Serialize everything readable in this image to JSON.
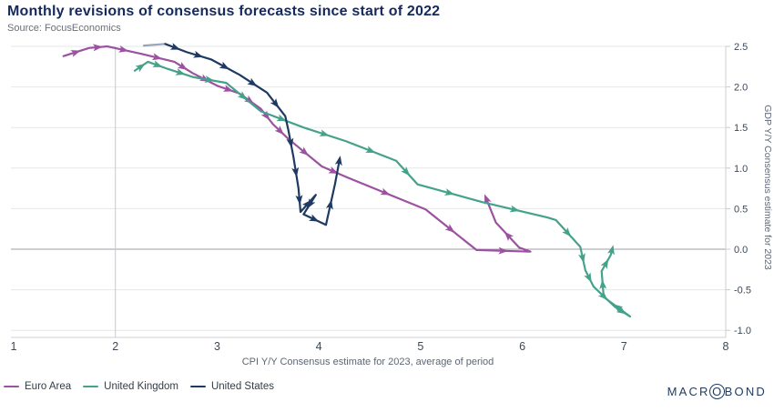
{
  "logo": {
    "part1": "MACR",
    "o": "O",
    "part2": "BOND"
  },
  "chart_data": {
    "type": "line",
    "title": "Monthly revisions of consensus forecasts since start of 2022",
    "source": "Source: FocusEconomics",
    "xlabel": "CPI Y/Y Consensus estimate for 2023, average of period",
    "ylabel": "GDP Y/Y Consensus estimate for 2023",
    "xlim": [
      1,
      8
    ],
    "ylim": [
      -1.0,
      2.5
    ],
    "xticks": [
      1,
      2,
      3,
      4,
      5,
      6,
      7,
      8
    ],
    "yticks": [
      2.5,
      2.0,
      1.5,
      1.0,
      0.5,
      0.0,
      -0.5,
      -1.0
    ],
    "grid": "horizontal light gridlines, darker zero line, vertical reference line at x=2",
    "reference_vline_x": 2,
    "zero_line": 0.0,
    "legend_position": "bottom-left",
    "marker_style": "directional arrows along each trail",
    "series": [
      {
        "name": "Euro Area",
        "color": "#9c51a1",
        "points": [
          [
            1.49,
            2.38
          ],
          [
            1.74,
            2.48
          ],
          [
            1.92,
            2.5
          ],
          [
            2.25,
            2.41
          ],
          [
            2.58,
            2.31
          ],
          [
            2.76,
            2.17
          ],
          [
            3.01,
            2.01
          ],
          [
            3.22,
            1.92
          ],
          [
            3.43,
            1.73
          ],
          [
            3.55,
            1.54
          ],
          [
            3.7,
            1.36
          ],
          [
            4.03,
            1.02
          ],
          [
            4.27,
            0.89
          ],
          [
            5.05,
            0.49
          ],
          [
            5.55,
            -0.01
          ],
          [
            6.08,
            -0.03
          ],
          [
            5.97,
            0.02
          ],
          [
            5.74,
            0.33
          ],
          [
            5.65,
            0.61
          ]
        ]
      },
      {
        "name": "United Kingdom",
        "color": "#44a28b",
        "points": [
          [
            2.19,
            2.2
          ],
          [
            2.32,
            2.31
          ],
          [
            2.52,
            2.22
          ],
          [
            2.77,
            2.12
          ],
          [
            3.09,
            2.05
          ],
          [
            3.43,
            1.7
          ],
          [
            3.85,
            1.5
          ],
          [
            4.27,
            1.33
          ],
          [
            4.76,
            1.09
          ],
          [
            4.97,
            0.8
          ],
          [
            5.61,
            0.58
          ],
          [
            6.25,
            0.39
          ],
          [
            6.33,
            0.36
          ],
          [
            6.57,
            0.03
          ],
          [
            6.62,
            -0.26
          ],
          [
            6.7,
            -0.46
          ],
          [
            6.91,
            -0.71
          ],
          [
            7.06,
            -0.83
          ],
          [
            6.8,
            -0.59
          ],
          [
            6.78,
            -0.27
          ],
          [
            6.87,
            -0.07
          ],
          [
            6.88,
            -0.02
          ]
        ]
      },
      {
        "name": "United States",
        "color": "#1e3a63",
        "start_fade": true,
        "points": [
          [
            2.28,
            2.51
          ],
          [
            2.49,
            2.53
          ],
          [
            2.7,
            2.43
          ],
          [
            2.94,
            2.34
          ],
          [
            3.22,
            2.15
          ],
          [
            3.49,
            1.93
          ],
          [
            3.67,
            1.64
          ],
          [
            3.7,
            1.47
          ],
          [
            3.75,
            1.14
          ],
          [
            3.8,
            0.75
          ],
          [
            3.82,
            0.46
          ],
          [
            3.97,
            0.67
          ],
          [
            3.85,
            0.43
          ],
          [
            4.07,
            0.3
          ],
          [
            4.16,
            0.81
          ],
          [
            4.2,
            1.08
          ]
        ]
      }
    ]
  }
}
